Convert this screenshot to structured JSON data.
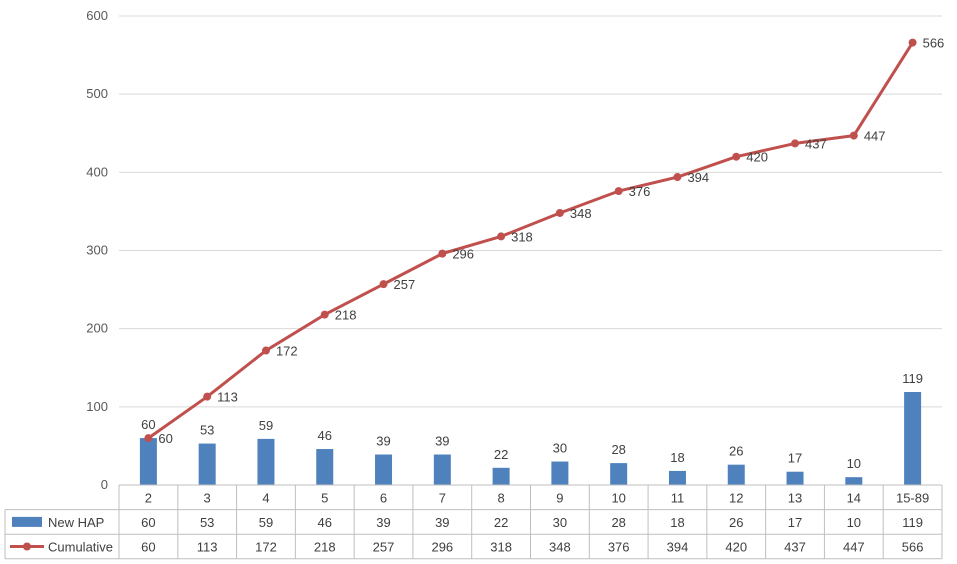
{
  "chart_data": {
    "type": "bar",
    "categories": [
      "2",
      "3",
      "4",
      "5",
      "6",
      "7",
      "8",
      "9",
      "10",
      "11",
      "12",
      "13",
      "14",
      "15-89"
    ],
    "series": [
      {
        "name": "New HAP",
        "type": "bar",
        "color": "#4f81bd",
        "values": [
          60,
          53,
          59,
          46,
          39,
          39,
          22,
          30,
          28,
          18,
          26,
          17,
          10,
          119
        ]
      },
      {
        "name": "Cumulative",
        "type": "line",
        "color": "#c0504d",
        "values": [
          60,
          113,
          172,
          218,
          257,
          296,
          318,
          348,
          376,
          394,
          420,
          437,
          447,
          566
        ]
      }
    ],
    "ylim": [
      0,
      600
    ],
    "yticks": [
      0,
      100,
      200,
      300,
      400,
      500,
      600
    ],
    "grid": true,
    "legend": "data-table"
  }
}
